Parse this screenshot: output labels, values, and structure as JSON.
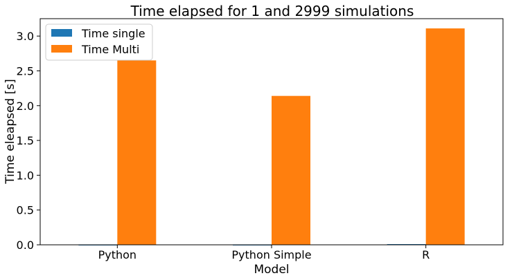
{
  "chart_data": {
    "type": "bar",
    "title": "Time elapsed for 1 and 2999 simulations",
    "xlabel": "Model",
    "ylabel": "Time eleapsed [s]",
    "categories": [
      "Python",
      "Python Simple",
      "R"
    ],
    "series": [
      {
        "name": "Time single",
        "color": "#1f77b4",
        "values": [
          0.001,
          0.001,
          0.01
        ]
      },
      {
        "name": "Time Multi",
        "color": "#ff7f0e",
        "values": [
          2.65,
          2.14,
          3.11
        ]
      }
    ],
    "ylim": [
      0,
      3.25
    ],
    "yticks": [
      "0.0",
      "0.5",
      "1.0",
      "1.5",
      "2.0",
      "2.5",
      "3.0"
    ],
    "grid": false,
    "legend": "top-left"
  }
}
